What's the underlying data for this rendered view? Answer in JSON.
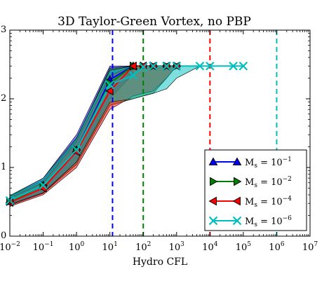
{
  "chart_data": {
    "type": "line",
    "title": "3D Taylor-Green Vortex, no PBP",
    "xlabel": "Hydro CFL",
    "ylabel": "",
    "xscale": "log",
    "yscale": "log",
    "xlim": [
      0.01,
      10000000
    ],
    "ylim": [
      1,
      1000
    ],
    "x_ticks": [
      {
        "value": 0.01,
        "base": "10",
        "exp": "−2"
      },
      {
        "value": 0.1,
        "base": "10",
        "exp": "−1"
      },
      {
        "value": 1,
        "base": "10",
        "exp": "0"
      },
      {
        "value": 10,
        "base": "10",
        "exp": "1"
      },
      {
        "value": 100,
        "base": "10",
        "exp": "2"
      },
      {
        "value": 1000,
        "base": "10",
        "exp": "3"
      },
      {
        "value": 10000,
        "base": "10",
        "exp": "4"
      },
      {
        "value": 100000,
        "base": "10",
        "exp": "5"
      },
      {
        "value": 1000000,
        "base": "10",
        "exp": "6"
      },
      {
        "value": 10000000,
        "base": "10",
        "exp": "7"
      }
    ],
    "y_ticks": [
      {
        "value": 1,
        "base": "",
        "exp": "0"
      },
      {
        "value": 10,
        "base": "",
        "exp": "1"
      },
      {
        "value": 100,
        "base": "",
        "exp": "2"
      },
      {
        "value": 1000,
        "base": "",
        "exp": "3"
      }
    ],
    "vlines": [
      {
        "x": 12,
        "color": "#0000ff"
      },
      {
        "x": 100,
        "color": "#008000"
      },
      {
        "x": 10000,
        "color": "#ff0000"
      },
      {
        "x": 1000000,
        "color": "#00bfbf"
      }
    ],
    "series": [
      {
        "label_base": "M",
        "label_sub": "s",
        "label_eq": " = 10",
        "label_exp": "−1",
        "color": "#0000ff",
        "fill": "#0000ff",
        "marker": "triangle-up",
        "x": [
          0.01,
          0.1,
          1,
          10,
          50
        ],
        "y": [
          3.2,
          5.5,
          18,
          190,
          300
        ],
        "band_low": [
          2.8,
          4.2,
          12,
          100,
          230
        ],
        "band_high": [
          3.8,
          7,
          30,
          300,
          300
        ]
      },
      {
        "label_base": "M",
        "label_sub": "s",
        "label_eq": " = 10",
        "label_exp": "−2",
        "color": "#008000",
        "fill": "#008000",
        "marker": "triangle-right",
        "x": [
          0.01,
          0.1,
          1,
          10,
          50,
          100,
          200,
          500,
          1000
        ],
        "y": [
          3.2,
          5.5,
          18,
          170,
          300,
          300,
          300,
          300,
          300
        ],
        "band_low": [
          2.8,
          4.2,
          11,
          80,
          100,
          110,
          120,
          200,
          300
        ],
        "band_high": [
          3.8,
          6.5,
          26,
          280,
          300,
          300,
          300,
          300,
          300
        ]
      },
      {
        "label_base": "M",
        "label_sub": "s",
        "label_eq": " = 10",
        "label_exp": "−4",
        "color": "#ff0000",
        "fill": "#ff0000",
        "marker": "triangle-left",
        "x": [
          0.01,
          0.1,
          1,
          10,
          50,
          100,
          200,
          500,
          1000
        ],
        "y": [
          3.1,
          5.0,
          17,
          130,
          300,
          300,
          300,
          300,
          300
        ],
        "band_low": [
          2.7,
          4.0,
          10,
          70,
          110,
          120,
          130,
          200,
          300
        ],
        "band_high": [
          3.6,
          6.0,
          24,
          220,
          300,
          300,
          300,
          300,
          300
        ]
      },
      {
        "label_base": "M",
        "label_sub": "s",
        "label_eq": " = 10",
        "label_exp": "−6",
        "color": "#00bfbf",
        "fill": "#00bfbf",
        "marker": "x",
        "x": [
          0.01,
          0.1,
          1,
          10,
          50,
          100,
          200,
          500,
          1000,
          5000,
          10000,
          50000,
          100000
        ],
        "y": [
          3.3,
          5.5,
          18,
          160,
          220,
          290,
          300,
          300,
          300,
          300,
          300,
          300,
          300
        ],
        "band_low": [
          2.9,
          4.3,
          12,
          90,
          100,
          110,
          120,
          140,
          200,
          300,
          300,
          300,
          300
        ],
        "band_high": [
          3.9,
          7,
          27,
          260,
          300,
          300,
          300,
          300,
          300,
          300,
          300,
          300,
          300
        ]
      }
    ],
    "legend_position": "lower-right",
    "grid": false
  }
}
